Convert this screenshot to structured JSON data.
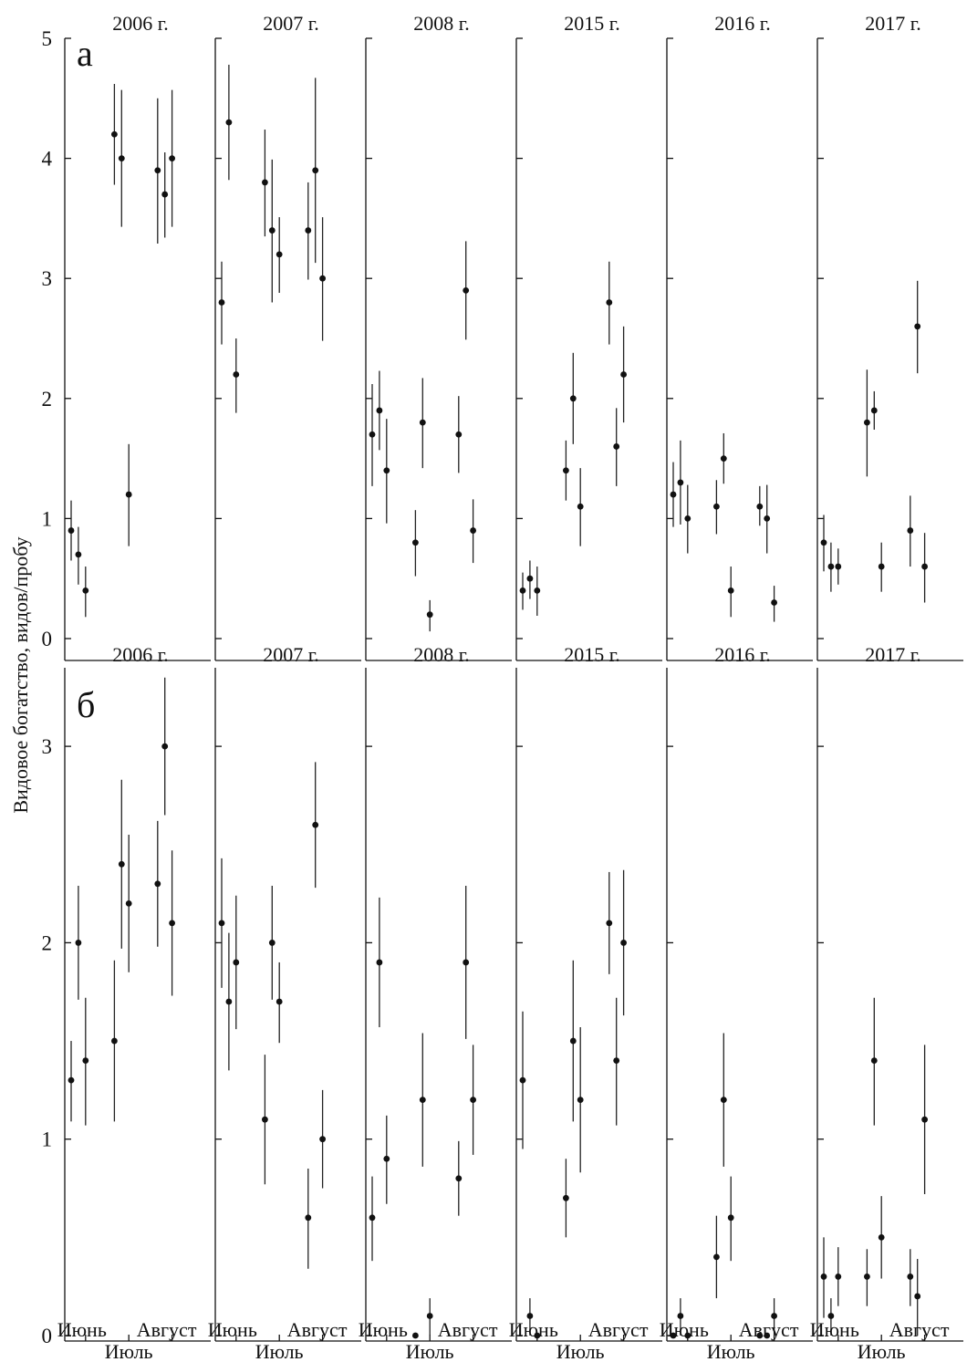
{
  "y_axis_label": "Видовое богатство, видов/пробу",
  "x_tick_labels": {
    "june": "Июнь",
    "july": "Июль",
    "august": "Август"
  },
  "chart_data": [
    {
      "type": "scatter",
      "panel_letter": "а",
      "ylim": [
        0,
        5
      ],
      "yticks": [
        0,
        1,
        2,
        3,
        4,
        5
      ],
      "grid": false,
      "panels": [
        {
          "title": "2006 г.",
          "points": [
            {
              "x": 1,
              "y": 0.9,
              "lo": 0.65,
              "hi": 1.15
            },
            {
              "x": 2,
              "y": 0.7,
              "lo": 0.45,
              "hi": 0.93
            },
            {
              "x": 3,
              "y": 0.4,
              "lo": 0.18,
              "hi": 0.6
            },
            {
              "x": 7,
              "y": 4.2,
              "lo": 3.78,
              "hi": 4.62
            },
            {
              "x": 8,
              "y": 4.0,
              "lo": 3.43,
              "hi": 4.57
            },
            {
              "x": 9,
              "y": 1.2,
              "lo": 0.77,
              "hi": 1.62
            },
            {
              "x": 13,
              "y": 3.9,
              "lo": 3.29,
              "hi": 4.5
            },
            {
              "x": 14,
              "y": 3.7,
              "lo": 3.34,
              "hi": 4.05
            },
            {
              "x": 15,
              "y": 4.0,
              "lo": 3.43,
              "hi": 4.57
            }
          ]
        },
        {
          "title": "2007 г.",
          "points": [
            {
              "x": 1,
              "y": 2.8,
              "lo": 2.45,
              "hi": 3.14
            },
            {
              "x": 2,
              "y": 4.3,
              "lo": 3.82,
              "hi": 4.78
            },
            {
              "x": 3,
              "y": 2.2,
              "lo": 1.88,
              "hi": 2.5
            },
            {
              "x": 7,
              "y": 3.8,
              "lo": 3.35,
              "hi": 4.24
            },
            {
              "x": 8,
              "y": 3.4,
              "lo": 2.8,
              "hi": 3.99
            },
            {
              "x": 9,
              "y": 3.2,
              "lo": 2.88,
              "hi": 3.51
            },
            {
              "x": 13,
              "y": 3.4,
              "lo": 2.99,
              "hi": 3.8
            },
            {
              "x": 14,
              "y": 3.9,
              "lo": 3.13,
              "hi": 4.67
            },
            {
              "x": 15,
              "y": 3.0,
              "lo": 2.48,
              "hi": 3.51
            }
          ]
        },
        {
          "title": "2008 г.",
          "points": [
            {
              "x": 1,
              "y": 1.7,
              "lo": 1.27,
              "hi": 2.12
            },
            {
              "x": 2,
              "y": 1.9,
              "lo": 1.57,
              "hi": 2.23
            },
            {
              "x": 3,
              "y": 1.4,
              "lo": 0.96,
              "hi": 1.83
            },
            {
              "x": 7,
              "y": 0.8,
              "lo": 0.52,
              "hi": 1.07
            },
            {
              "x": 8,
              "y": 1.8,
              "lo": 1.42,
              "hi": 2.17
            },
            {
              "x": 9,
              "y": 0.2,
              "lo": 0.06,
              "hi": 0.32
            },
            {
              "x": 13,
              "y": 1.7,
              "lo": 1.38,
              "hi": 2.02
            },
            {
              "x": 14,
              "y": 2.9,
              "lo": 2.49,
              "hi": 3.31
            },
            {
              "x": 15,
              "y": 0.9,
              "lo": 0.63,
              "hi": 1.16
            }
          ]
        },
        {
          "title": "2015 г.",
          "points": [
            {
              "x": 1,
              "y": 0.4,
              "lo": 0.24,
              "hi": 0.55
            },
            {
              "x": 2,
              "y": 0.5,
              "lo": 0.33,
              "hi": 0.65
            },
            {
              "x": 3,
              "y": 0.4,
              "lo": 0.19,
              "hi": 0.6
            },
            {
              "x": 7,
              "y": 1.4,
              "lo": 1.15,
              "hi": 1.65
            },
            {
              "x": 8,
              "y": 2.0,
              "lo": 1.62,
              "hi": 2.38
            },
            {
              "x": 9,
              "y": 1.1,
              "lo": 0.77,
              "hi": 1.42
            },
            {
              "x": 13,
              "y": 2.8,
              "lo": 2.45,
              "hi": 3.14
            },
            {
              "x": 14,
              "y": 1.6,
              "lo": 1.27,
              "hi": 1.92
            },
            {
              "x": 15,
              "y": 2.2,
              "lo": 1.8,
              "hi": 2.6
            }
          ]
        },
        {
          "title": "2016 г.",
          "points": [
            {
              "x": 1,
              "y": 1.2,
              "lo": 0.93,
              "hi": 1.47
            },
            {
              "x": 2,
              "y": 1.3,
              "lo": 0.95,
              "hi": 1.65
            },
            {
              "x": 3,
              "y": 1.0,
              "lo": 0.71,
              "hi": 1.28
            },
            {
              "x": 7,
              "y": 1.1,
              "lo": 0.87,
              "hi": 1.32
            },
            {
              "x": 8,
              "y": 1.5,
              "lo": 1.29,
              "hi": 1.71
            },
            {
              "x": 9,
              "y": 0.4,
              "lo": 0.18,
              "hi": 0.6
            },
            {
              "x": 13,
              "y": 1.1,
              "lo": 0.94,
              "hi": 1.27
            },
            {
              "x": 14,
              "y": 1.0,
              "lo": 0.71,
              "hi": 1.28
            },
            {
              "x": 15,
              "y": 0.3,
              "lo": 0.14,
              "hi": 0.44
            }
          ]
        },
        {
          "title": "2017 г.",
          "points": [
            {
              "x": 1,
              "y": 0.8,
              "lo": 0.56,
              "hi": 1.03
            },
            {
              "x": 2,
              "y": 0.6,
              "lo": 0.39,
              "hi": 0.8
            },
            {
              "x": 3,
              "y": 0.6,
              "lo": 0.45,
              "hi": 0.75
            },
            {
              "x": 7,
              "y": 1.8,
              "lo": 1.35,
              "hi": 2.24
            },
            {
              "x": 8,
              "y": 1.9,
              "lo": 1.74,
              "hi": 2.06
            },
            {
              "x": 9,
              "y": 0.6,
              "lo": 0.39,
              "hi": 0.8
            },
            {
              "x": 13,
              "y": 0.9,
              "lo": 0.6,
              "hi": 1.19
            },
            {
              "x": 14,
              "y": 2.6,
              "lo": 2.21,
              "hi": 2.98
            },
            {
              "x": 15,
              "y": 0.6,
              "lo": 0.3,
              "hi": 0.88
            }
          ]
        }
      ]
    },
    {
      "type": "scatter",
      "panel_letter": "б",
      "ylim": [
        0,
        3.4
      ],
      "yticks": [
        0,
        1,
        2,
        3
      ],
      "grid": false,
      "panels": [
        {
          "title": "2006 г.",
          "points": [
            {
              "x": 1,
              "y": 1.3,
              "lo": 1.09,
              "hi": 1.5
            },
            {
              "x": 2,
              "y": 2.0,
              "lo": 1.71,
              "hi": 2.29
            },
            {
              "x": 3,
              "y": 1.4,
              "lo": 1.07,
              "hi": 1.72
            },
            {
              "x": 7,
              "y": 1.5,
              "lo": 1.09,
              "hi": 1.91
            },
            {
              "x": 8,
              "y": 2.4,
              "lo": 1.97,
              "hi": 2.83
            },
            {
              "x": 9,
              "y": 2.2,
              "lo": 1.85,
              "hi": 2.55
            },
            {
              "x": 13,
              "y": 2.3,
              "lo": 1.98,
              "hi": 2.62
            },
            {
              "x": 14,
              "y": 3.0,
              "lo": 2.65,
              "hi": 3.35
            },
            {
              "x": 15,
              "y": 2.1,
              "lo": 1.73,
              "hi": 2.47
            }
          ]
        },
        {
          "title": "2007 г.",
          "points": [
            {
              "x": 1,
              "y": 2.1,
              "lo": 1.77,
              "hi": 2.43
            },
            {
              "x": 2,
              "y": 1.7,
              "lo": 1.35,
              "hi": 2.05
            },
            {
              "x": 3,
              "y": 1.9,
              "lo": 1.56,
              "hi": 2.24
            },
            {
              "x": 7,
              "y": 1.1,
              "lo": 0.77,
              "hi": 1.43
            },
            {
              "x": 8,
              "y": 2.0,
              "lo": 1.71,
              "hi": 2.29
            },
            {
              "x": 9,
              "y": 1.7,
              "lo": 1.49,
              "hi": 1.9
            },
            {
              "x": 13,
              "y": 0.6,
              "lo": 0.34,
              "hi": 0.85
            },
            {
              "x": 14,
              "y": 2.6,
              "lo": 2.28,
              "hi": 2.92
            },
            {
              "x": 15,
              "y": 1.0,
              "lo": 0.75,
              "hi": 1.25
            }
          ]
        },
        {
          "title": "2008 г.",
          "points": [
            {
              "x": 1,
              "y": 0.6,
              "lo": 0.38,
              "hi": 0.81
            },
            {
              "x": 2,
              "y": 1.9,
              "lo": 1.57,
              "hi": 2.23
            },
            {
              "x": 3,
              "y": 0.9,
              "lo": 0.67,
              "hi": 1.12
            },
            {
              "x": 7,
              "y": 0.0,
              "lo": 0.0,
              "hi": 0.0
            },
            {
              "x": 8,
              "y": 1.2,
              "lo": 0.86,
              "hi": 1.54
            },
            {
              "x": 9,
              "y": 0.1,
              "lo": 0.0,
              "hi": 0.19
            },
            {
              "x": 13,
              "y": 0.8,
              "lo": 0.61,
              "hi": 0.99
            },
            {
              "x": 14,
              "y": 1.9,
              "lo": 1.51,
              "hi": 2.29
            },
            {
              "x": 15,
              "y": 1.2,
              "lo": 0.92,
              "hi": 1.48
            }
          ]
        },
        {
          "title": "2015 г.",
          "points": [
            {
              "x": 1,
              "y": 1.3,
              "lo": 0.95,
              "hi": 1.65
            },
            {
              "x": 2,
              "y": 0.1,
              "lo": 0.0,
              "hi": 0.19
            },
            {
              "x": 3,
              "y": 0.0,
              "lo": 0.0,
              "hi": 0.0
            },
            {
              "x": 7,
              "y": 0.7,
              "lo": 0.5,
              "hi": 0.9
            },
            {
              "x": 8,
              "y": 1.5,
              "lo": 1.09,
              "hi": 1.91
            },
            {
              "x": 9,
              "y": 1.2,
              "lo": 0.83,
              "hi": 1.57
            },
            {
              "x": 13,
              "y": 2.1,
              "lo": 1.84,
              "hi": 2.36
            },
            {
              "x": 14,
              "y": 1.4,
              "lo": 1.07,
              "hi": 1.72
            },
            {
              "x": 15,
              "y": 2.0,
              "lo": 1.63,
              "hi": 2.37
            }
          ]
        },
        {
          "title": "2016 г.",
          "points": [
            {
              "x": 1,
              "y": 0.0,
              "lo": 0.0,
              "hi": 0.0
            },
            {
              "x": 2,
              "y": 0.1,
              "lo": 0.0,
              "hi": 0.19
            },
            {
              "x": 3,
              "y": 0.0,
              "lo": 0.0,
              "hi": 0.0
            },
            {
              "x": 7,
              "y": 0.4,
              "lo": 0.19,
              "hi": 0.61
            },
            {
              "x": 8,
              "y": 1.2,
              "lo": 0.86,
              "hi": 1.54
            },
            {
              "x": 9,
              "y": 0.6,
              "lo": 0.38,
              "hi": 0.81
            },
            {
              "x": 13,
              "y": 0.0,
              "lo": 0.0,
              "hi": 0.0
            },
            {
              "x": 14,
              "y": 0.0,
              "lo": 0.0,
              "hi": 0.0
            },
            {
              "x": 15,
              "y": 0.1,
              "lo": 0.0,
              "hi": 0.19
            }
          ]
        },
        {
          "title": "2017 г.",
          "points": [
            {
              "x": 1,
              "y": 0.3,
              "lo": 0.09,
              "hi": 0.5
            },
            {
              "x": 2,
              "y": 0.1,
              "lo": 0.0,
              "hi": 0.19
            },
            {
              "x": 3,
              "y": 0.3,
              "lo": 0.15,
              "hi": 0.45
            },
            {
              "x": 7,
              "y": 0.3,
              "lo": 0.15,
              "hi": 0.44
            },
            {
              "x": 8,
              "y": 1.4,
              "lo": 1.07,
              "hi": 1.72
            },
            {
              "x": 9,
              "y": 0.5,
              "lo": 0.29,
              "hi": 0.71
            },
            {
              "x": 13,
              "y": 0.3,
              "lo": 0.15,
              "hi": 0.44
            },
            {
              "x": 14,
              "y": 0.2,
              "lo": 0.0,
              "hi": 0.39
            },
            {
              "x": 15,
              "y": 1.1,
              "lo": 0.72,
              "hi": 1.48
            }
          ]
        }
      ]
    }
  ]
}
